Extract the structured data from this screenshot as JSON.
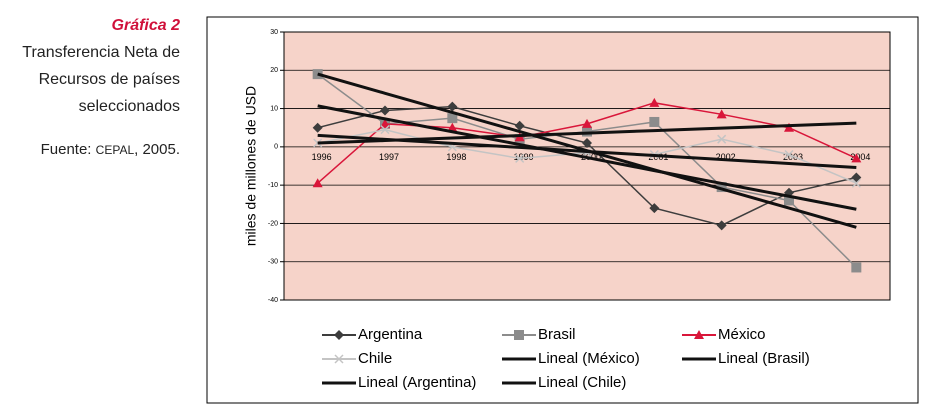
{
  "caption": {
    "label": "Gráfica 2",
    "title_lines": [
      "Transferencia Neta de",
      "Recursos de países",
      "seleccionados"
    ],
    "source_prefix": "Fuente:",
    "source_org": "CEPAL",
    "source_year": ", 2005."
  },
  "chart_data": {
    "type": "line",
    "ylabel": "miles de millones de USD",
    "categories": [
      "1996",
      "1997",
      "1998",
      "1999",
      "2000",
      "2001",
      "2002",
      "2003",
      "2004"
    ],
    "ylim": [
      -40,
      30
    ],
    "yticks": [
      30,
      20,
      10,
      0,
      -10,
      -20,
      -30,
      -40
    ],
    "grid": true,
    "background": "#f6d3c9",
    "series": [
      {
        "name": "Argentina",
        "color": "#3d3d3d",
        "marker": "diamond",
        "values": [
          5,
          9.5,
          10.5,
          5.5,
          1,
          -16,
          -20.5,
          -12,
          -8
        ]
      },
      {
        "name": "Brasil",
        "color": "#8c8c8c",
        "marker": "square",
        "values": [
          19,
          6,
          7.5,
          2,
          4,
          6.5,
          -10.5,
          -14,
          -31.5
        ]
      },
      {
        "name": "México",
        "color": "#d9163a",
        "marker": "triangle",
        "values": [
          -9.5,
          6,
          5,
          2.5,
          6,
          11.5,
          8.5,
          5,
          -3
        ]
      },
      {
        "name": "Chile",
        "color": "#c4c4c4",
        "marker": "x",
        "values": [
          1,
          4.5,
          0,
          -3,
          -1.5,
          -2,
          2,
          -2,
          -9.5
        ]
      },
      {
        "name": "Lineal (México)",
        "color": "#111111",
        "width": 3,
        "values": [
          1,
          1.65,
          2.3,
          2.95,
          3.6,
          4.25,
          4.9,
          5.55,
          6.2
        ]
      },
      {
        "name": "Lineal (Brasil)",
        "color": "#111111",
        "width": 3,
        "values": [
          19,
          14,
          9,
          4,
          -1,
          -6,
          -11,
          -16,
          -21
        ]
      },
      {
        "name": "Lineal (Argentina)",
        "color": "#111111",
        "width": 3,
        "values": [
          10.7,
          7.3,
          3.95,
          0.6,
          -2.8,
          -6.2,
          -9.55,
          -12.9,
          -16.3
        ]
      },
      {
        "name": "Lineal (Chile)",
        "color": "#111111",
        "width": 3,
        "values": [
          3,
          1.95,
          0.9,
          -0.15,
          -1.2,
          -2.25,
          -3.3,
          -4.35,
          -5.4
        ]
      }
    ]
  }
}
